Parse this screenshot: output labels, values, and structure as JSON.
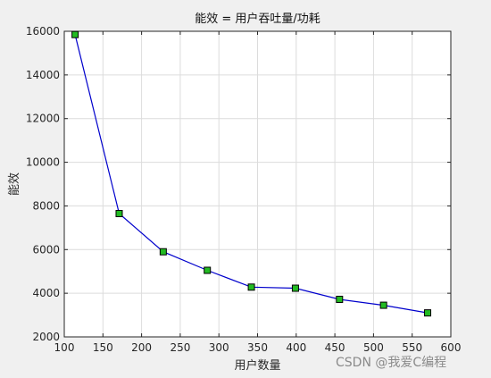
{
  "chart_data": {
    "type": "line",
    "title": "能效 = 用户吞吐量/功耗",
    "xlabel": "用户数量",
    "ylabel": "能效",
    "xlim": [
      100,
      600
    ],
    "ylim": [
      2000,
      16000
    ],
    "xticks": [
      100,
      150,
      200,
      250,
      300,
      350,
      400,
      450,
      500,
      550,
      600
    ],
    "yticks": [
      2000,
      4000,
      6000,
      8000,
      10000,
      12000,
      14000,
      16000
    ],
    "grid": true,
    "series": [
      {
        "x": [
          114,
          171,
          228,
          285,
          342,
          399,
          456,
          513,
          570
        ],
        "y": [
          15850,
          7650,
          5900,
          5050,
          4280,
          4230,
          3720,
          3450,
          3100
        ],
        "color": "#0000cc",
        "marker": "square",
        "marker_color": "#22bb22"
      }
    ]
  },
  "watermark": "CSDN @我爱C编程"
}
